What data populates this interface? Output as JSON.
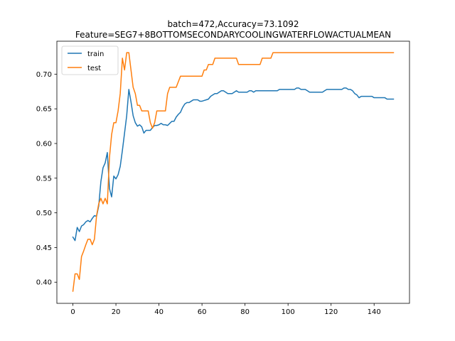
{
  "chart_data": {
    "type": "line",
    "title_line1": "batch=472,Accuracy=73.1092",
    "title_line2": "Feature=SEG7+8BOTTOMSECONDARYCOOLINGWATERFLOWACTUALMEAN",
    "xlabel": "",
    "ylabel": "",
    "xlim": [
      -7.45,
      156.45
    ],
    "ylim": [
      0.3695,
      0.7475
    ],
    "xticks": [
      0,
      20,
      40,
      60,
      80,
      100,
      120,
      140
    ],
    "yticks": [
      0.4,
      0.45,
      0.5,
      0.55,
      0.6,
      0.65,
      0.7
    ],
    "legend_position": "upper-left",
    "grid": false,
    "series": [
      {
        "name": "train",
        "color": "#1f77b4",
        "x": [
          0,
          1,
          2,
          3,
          4,
          5,
          6,
          7,
          8,
          9,
          10,
          11,
          12,
          13,
          14,
          15,
          16,
          17,
          18,
          19,
          20,
          21,
          22,
          23,
          24,
          25,
          26,
          27,
          28,
          29,
          30,
          31,
          32,
          33,
          34,
          35,
          36,
          37,
          38,
          39,
          40,
          41,
          42,
          43,
          44,
          45,
          46,
          47,
          48,
          49,
          50,
          51,
          52,
          53,
          54,
          55,
          56,
          57,
          58,
          59,
          60,
          61,
          62,
          63,
          64,
          65,
          66,
          67,
          68,
          69,
          70,
          71,
          72,
          73,
          74,
          75,
          76,
          77,
          78,
          79,
          80,
          81,
          82,
          83,
          84,
          85,
          86,
          87,
          88,
          89,
          90,
          91,
          92,
          93,
          94,
          95,
          96,
          97,
          98,
          99,
          100,
          101,
          102,
          103,
          104,
          105,
          106,
          107,
          108,
          109,
          110,
          111,
          112,
          113,
          114,
          115,
          116,
          117,
          118,
          119,
          120,
          121,
          122,
          123,
          124,
          125,
          126,
          127,
          128,
          129,
          130,
          131,
          132,
          133,
          134,
          135,
          136,
          137,
          138,
          139,
          140,
          141,
          142,
          143,
          144,
          145,
          146,
          147,
          148,
          149
        ],
        "values": [
          0.465,
          0.46,
          0.479,
          0.473,
          0.481,
          0.483,
          0.487,
          0.489,
          0.487,
          0.492,
          0.496,
          0.495,
          0.51,
          0.545,
          0.565,
          0.572,
          0.587,
          0.535,
          0.523,
          0.553,
          0.549,
          0.555,
          0.567,
          0.59,
          0.615,
          0.64,
          0.678,
          0.66,
          0.64,
          0.63,
          0.625,
          0.627,
          0.624,
          0.615,
          0.619,
          0.619,
          0.619,
          0.623,
          0.626,
          0.626,
          0.627,
          0.629,
          0.627,
          0.627,
          0.626,
          0.629,
          0.632,
          0.632,
          0.638,
          0.642,
          0.645,
          0.652,
          0.657,
          0.659,
          0.659,
          0.661,
          0.663,
          0.663,
          0.663,
          0.661,
          0.661,
          0.662,
          0.663,
          0.664,
          0.668,
          0.67,
          0.672,
          0.672,
          0.674,
          0.676,
          0.676,
          0.674,
          0.672,
          0.672,
          0.672,
          0.674,
          0.676,
          0.674,
          0.674,
          0.674,
          0.674,
          0.674,
          0.676,
          0.676,
          0.674,
          0.676,
          0.676,
          0.676,
          0.676,
          0.676,
          0.676,
          0.676,
          0.676,
          0.676,
          0.676,
          0.676,
          0.678,
          0.678,
          0.678,
          0.678,
          0.678,
          0.678,
          0.678,
          0.678,
          0.68,
          0.68,
          0.678,
          0.678,
          0.678,
          0.676,
          0.674,
          0.674,
          0.674,
          0.674,
          0.674,
          0.674,
          0.674,
          0.676,
          0.678,
          0.678,
          0.678,
          0.678,
          0.678,
          0.678,
          0.678,
          0.678,
          0.68,
          0.68,
          0.678,
          0.678,
          0.676,
          0.672,
          0.67,
          0.666,
          0.668,
          0.668,
          0.668,
          0.668,
          0.668,
          0.668,
          0.666,
          0.666,
          0.666,
          0.666,
          0.666,
          0.666,
          0.664,
          0.664,
          0.664,
          0.664
        ]
      },
      {
        "name": "test",
        "color": "#ff7f0e",
        "x": [
          0,
          1,
          2,
          3,
          4,
          5,
          6,
          7,
          8,
          9,
          10,
          11,
          12,
          13,
          14,
          15,
          16,
          17,
          18,
          19,
          20,
          21,
          22,
          23,
          24,
          25,
          26,
          27,
          28,
          29,
          30,
          31,
          32,
          33,
          34,
          35,
          36,
          37,
          38,
          39,
          40,
          41,
          42,
          43,
          44,
          45,
          46,
          47,
          48,
          49,
          50,
          51,
          52,
          53,
          54,
          55,
          56,
          57,
          58,
          59,
          60,
          61,
          62,
          63,
          64,
          65,
          66,
          67,
          68,
          69,
          70,
          71,
          72,
          73,
          74,
          75,
          76,
          77,
          78,
          79,
          80,
          81,
          82,
          83,
          84,
          85,
          86,
          87,
          88,
          89,
          90,
          91,
          92,
          93,
          94,
          95,
          96,
          97,
          98,
          99,
          100,
          101,
          102,
          103,
          104,
          105,
          106,
          107,
          108,
          109,
          110,
          111,
          112,
          113,
          114,
          115,
          116,
          117,
          118,
          119,
          120,
          121,
          122,
          123,
          124,
          125,
          126,
          127,
          128,
          129,
          130,
          131,
          132,
          133,
          134,
          135,
          136,
          137,
          138,
          139,
          140,
          141,
          142,
          143,
          144,
          145,
          146,
          147,
          148,
          149
        ],
        "values": [
          0.387,
          0.412,
          0.412,
          0.404,
          0.437,
          0.445,
          0.454,
          0.462,
          0.462,
          0.454,
          0.462,
          0.496,
          0.513,
          0.521,
          0.513,
          0.521,
          0.513,
          0.58,
          0.613,
          0.63,
          0.63,
          0.647,
          0.672,
          0.723,
          0.706,
          0.731,
          0.731,
          0.706,
          0.681,
          0.672,
          0.655,
          0.655,
          0.647,
          0.647,
          0.647,
          0.647,
          0.63,
          0.622,
          0.63,
          0.647,
          0.647,
          0.647,
          0.647,
          0.647,
          0.672,
          0.681,
          0.681,
          0.681,
          0.681,
          0.689,
          0.697,
          0.697,
          0.697,
          0.697,
          0.697,
          0.697,
          0.697,
          0.697,
          0.697,
          0.697,
          0.697,
          0.706,
          0.706,
          0.714,
          0.714,
          0.714,
          0.723,
          0.723,
          0.723,
          0.723,
          0.723,
          0.723,
          0.723,
          0.723,
          0.723,
          0.723,
          0.723,
          0.714,
          0.714,
          0.714,
          0.714,
          0.714,
          0.714,
          0.714,
          0.714,
          0.714,
          0.714,
          0.714,
          0.723,
          0.723,
          0.723,
          0.723,
          0.723,
          0.731,
          0.731,
          0.731,
          0.731,
          0.731,
          0.731,
          0.731,
          0.731,
          0.731,
          0.731,
          0.731,
          0.731,
          0.731,
          0.731,
          0.731,
          0.731,
          0.731,
          0.731,
          0.731,
          0.731,
          0.731,
          0.731,
          0.731,
          0.731,
          0.731,
          0.731,
          0.731,
          0.731,
          0.731,
          0.731,
          0.731,
          0.731,
          0.731,
          0.731,
          0.731,
          0.731,
          0.731,
          0.731,
          0.731,
          0.731,
          0.731,
          0.731,
          0.731,
          0.731,
          0.731,
          0.731,
          0.731,
          0.731,
          0.731,
          0.731,
          0.731,
          0.731,
          0.731,
          0.731,
          0.731,
          0.731,
          0.731
        ]
      }
    ]
  }
}
